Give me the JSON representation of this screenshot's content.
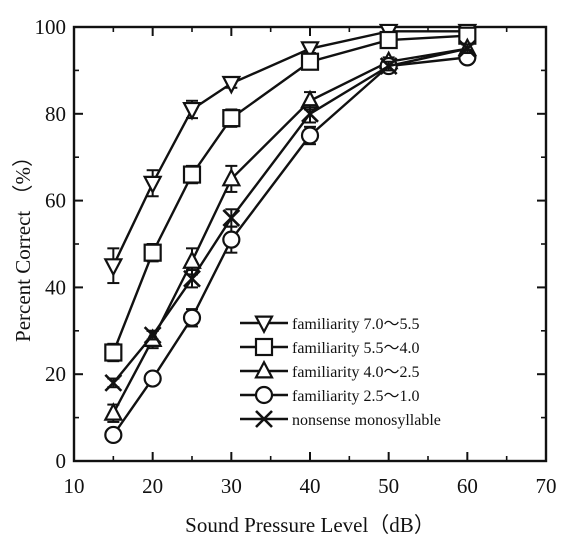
{
  "chart_data": {
    "type": "line",
    "xlabel": "Sound Pressure Level（dB）",
    "ylabel": "Percent Correct （%）",
    "xlim": [
      10,
      70
    ],
    "ylim": [
      0,
      100
    ],
    "x_ticks": [
      "10",
      "20",
      "30",
      "40",
      "50",
      "60",
      "70"
    ],
    "y_ticks": [
      "0",
      "20",
      "40",
      "60",
      "80",
      "100"
    ],
    "grid": false,
    "legend_position": "bottom-right",
    "x": [
      15,
      20,
      25,
      30,
      40,
      50,
      60
    ],
    "series": [
      {
        "name": "familiarity 7.0～5.5",
        "marker": "triangle-down",
        "values": [
          45,
          64,
          81,
          87,
          95,
          99,
          99
        ],
        "error": [
          4,
          3,
          2,
          1,
          1,
          0,
          0
        ]
      },
      {
        "name": "familiarity 5.5～4.0",
        "marker": "square",
        "values": [
          25,
          48,
          66,
          79,
          92,
          97,
          98
        ],
        "error": [
          2,
          2,
          2,
          2,
          1,
          1,
          1
        ]
      },
      {
        "name": "familiarity 4.0～2.5",
        "marker": "triangle-up",
        "values": [
          11,
          28,
          46,
          65,
          83,
          92,
          95
        ],
        "error": [
          2,
          2,
          3,
          3,
          2,
          1,
          1
        ]
      },
      {
        "name": "familiarity 2.5～1.0",
        "marker": "circle",
        "values": [
          6,
          19,
          33,
          51,
          75,
          91,
          93
        ],
        "error": [
          1,
          1,
          2,
          3,
          2,
          1,
          1
        ]
      },
      {
        "name": "nonsense monosyllable",
        "marker": "x",
        "values": [
          18,
          29,
          42,
          56,
          80,
          91,
          95
        ],
        "error": [
          1,
          1,
          2,
          2,
          2,
          1,
          1
        ]
      }
    ]
  }
}
